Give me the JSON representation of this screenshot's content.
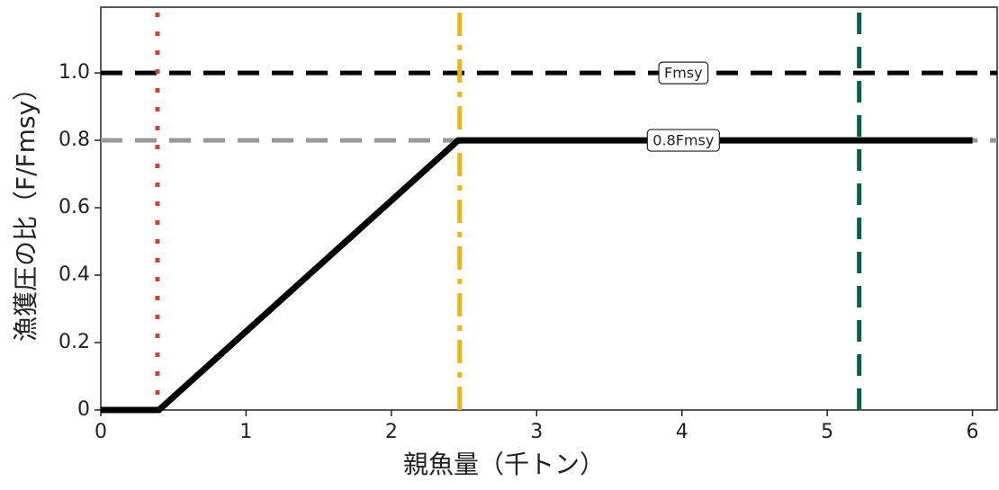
{
  "chart_data": {
    "type": "line",
    "xlabel": "親魚量（千トン）",
    "ylabel": "漁獲圧の比（F/Fmsy）",
    "x": [
      0,
      0.4,
      2.46,
      6
    ],
    "values": [
      0,
      0,
      0.8,
      0.8
    ],
    "color": "#000000",
    "xlim": [
      0,
      6.17
    ],
    "ylim": [
      0,
      1.195
    ],
    "xticks": [
      0,
      1,
      2,
      3,
      4,
      5,
      6
    ],
    "yticks": [
      0,
      0.2,
      0.4,
      0.6,
      0.8,
      {
        "value": 1,
        "label": "1.0"
      }
    ],
    "hlines": [
      {
        "value": 1,
        "color": "#000000",
        "style": "dashed"
      },
      {
        "value": 0.8,
        "color": "#999999",
        "style": "dashed"
      }
    ],
    "vlines": [
      {
        "value": 0.39,
        "color": "#c8473a",
        "style": "dotted"
      },
      {
        "value": 2.47,
        "color": "#e8b520",
        "style": "dashdot"
      },
      {
        "value": 5.22,
        "color": "#0e5e4b",
        "style": "dashed"
      }
    ],
    "annotations": [
      {
        "text": "Fmsy",
        "x": 4.01,
        "y": 1
      },
      {
        "text": "0.8Fmsy",
        "x": 4.01,
        "y": 0.8
      }
    ]
  }
}
